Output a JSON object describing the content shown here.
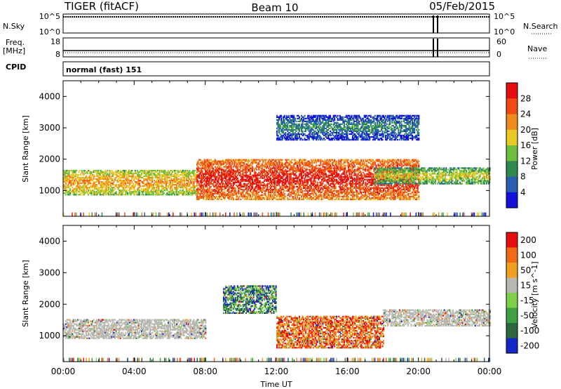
{
  "header": {
    "radar": "TIGER (fitACF)",
    "beam": "Beam 10",
    "date": "05/Feb/2015"
  },
  "params_panel": {
    "n_sky_label": "N.Sky",
    "n_search_label": "N.Search",
    "n_ticks_left": [
      "10^5",
      "10^0"
    ],
    "n_ticks_right": [
      "10^5",
      "10^0"
    ],
    "freq_label": "Freq.",
    "freq_unit": "[MHz]",
    "freq_ticks": [
      "18",
      "8"
    ],
    "nave_label": "Nave",
    "nave_ticks": [
      "60",
      "0"
    ],
    "cpid_label": "CPID",
    "cpid_text": "normal (fast) 151"
  },
  "xaxis": {
    "label": "Time UT",
    "ticks": [
      "00:00",
      "04:00",
      "08:00",
      "12:00",
      "16:00",
      "20:00",
      "00:00"
    ]
  },
  "chart_data": [
    {
      "type": "heatmap",
      "name": "power",
      "xlabel": "Time UT",
      "ylabel": "Slant Range [km]",
      "xlim": [
        0,
        24
      ],
      "ylim": [
        180,
        4500
      ],
      "y_ticks": [
        1000,
        2000,
        3000,
        4000
      ],
      "colorbar_label": "Power [dB]",
      "colorbar_ticks": [
        "4",
        "8",
        "12",
        "16",
        "20",
        "24",
        "28"
      ],
      "colorbar_colors": [
        "#1212d8",
        "#2a5fb0",
        "#2e8b50",
        "#6fbf3f",
        "#e8c822",
        "#f08a1c",
        "#f24a14",
        "#e60f0f"
      ],
      "note_regions": [
        {
          "t": [
            0,
            7.5
          ],
          "r": [
            850,
            1650
          ],
          "level": "mid-high"
        },
        {
          "t": [
            7.5,
            20
          ],
          "r": [
            700,
            2000
          ],
          "level": "high"
        },
        {
          "t": [
            17.5,
            24
          ],
          "r": [
            1200,
            1700
          ],
          "level": "mid"
        },
        {
          "t": [
            12,
            20
          ],
          "r": [
            2600,
            3400
          ],
          "level": "low"
        }
      ]
    },
    {
      "type": "heatmap",
      "name": "velocity",
      "xlabel": "Time UT",
      "ylabel": "Slant Range [km]",
      "xlim": [
        0,
        24
      ],
      "ylim": [
        180,
        4500
      ],
      "y_ticks": [
        1000,
        2000,
        3000,
        4000
      ],
      "colorbar_label": "Velocity [m s^-1]",
      "colorbar_ticks": [
        "200",
        "100",
        "50",
        "15",
        "-15",
        "-50",
        "-100",
        "-200"
      ],
      "colorbar_colors": [
        "#1428c8",
        "#2a6a3a",
        "#3ea040",
        "#7ed04a",
        "#b8b8b0",
        "#f0a020",
        "#f26a14",
        "#e60f0f"
      ],
      "note_regions": [
        {
          "t": [
            0,
            8
          ],
          "r": [
            900,
            1500
          ],
          "level": "ground-scatter"
        },
        {
          "t": [
            9,
            12
          ],
          "r": [
            1700,
            2600
          ],
          "level": "positive"
        },
        {
          "t": [
            12,
            18
          ],
          "r": [
            600,
            1600
          ],
          "level": "negative"
        },
        {
          "t": [
            18,
            24
          ],
          "r": [
            1300,
            1800
          ],
          "level": "ground-scatter"
        }
      ]
    }
  ]
}
